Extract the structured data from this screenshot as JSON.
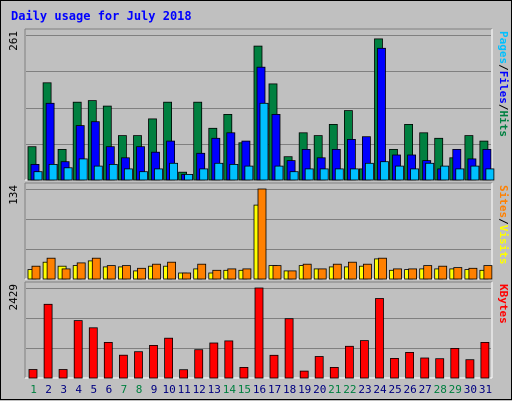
{
  "chart_data": {
    "type": "bar",
    "title": "Daily usage for July 2018",
    "categories": [
      "1",
      "2",
      "3",
      "4",
      "5",
      "6",
      "7",
      "8",
      "9",
      "10",
      "11",
      "12",
      "13",
      "14",
      "15",
      "16",
      "17",
      "18",
      "19",
      "20",
      "21",
      "22",
      "23",
      "24",
      "25",
      "26",
      "27",
      "28",
      "29",
      "30",
      "31"
    ],
    "weekend_days": [
      "1",
      "7",
      "8",
      "14",
      "15",
      "21",
      "22",
      "28",
      "29"
    ],
    "colors": {
      "hits": "#008040",
      "files": "#0000ff",
      "pages": "#00c0ff",
      "visits": "#ffff00",
      "sites": "#ff8000",
      "kbytes": "#ff0000",
      "title": "#0000ff",
      "weekend_label": "#008040",
      "weekday_label": "#000080"
    },
    "panels": [
      {
        "name": "hits-files-pages",
        "max_label": "261",
        "ymax": 261,
        "axis_parts": [
          {
            "text": "Pages",
            "color": "#00c0ff"
          },
          {
            "text": "/",
            "color": "#000000"
          },
          {
            "text": "Files",
            "color": "#0000ff"
          },
          {
            "text": "/",
            "color": "#000000"
          },
          {
            "text": "Hits",
            "color": "#008040"
          }
        ],
        "series": [
          {
            "name": "Hits",
            "color": "#008040",
            "values": [
              60,
              175,
              55,
              140,
              143,
              133,
              80,
              80,
              110,
              140,
              14,
              140,
              93,
              118,
              67,
              241,
              173,
              42,
              85,
              80,
              100,
              125,
              20,
              254,
              55,
              100,
              85,
              75,
              40,
              80,
              70
            ]
          },
          {
            "name": "Files",
            "color": "#0000ff",
            "values": [
              28,
              138,
              33,
              98,
              105,
              60,
              40,
              60,
              50,
              70,
              10,
              48,
              75,
              85,
              70,
              203,
              118,
              35,
              55,
              40,
              55,
              73,
              78,
              237,
              45,
              45,
              35,
              20,
              55,
              38,
              55
            ]
          },
          {
            "name": "Pages",
            "color": "#00c0ff",
            "values": [
              15,
              28,
              22,
              38,
              25,
              28,
              20,
              15,
              20,
              30,
              10,
              20,
              30,
              28,
              25,
              138,
              25,
              15,
              20,
              20,
              20,
              20,
              30,
              33,
              25,
              20,
              30,
              25,
              20,
              25,
              20
            ]
          }
        ]
      },
      {
        "name": "visits-sites",
        "max_label": "134",
        "ymax": 134,
        "axis_parts": [
          {
            "text": "Sites",
            "color": "#ff8000"
          },
          {
            "text": "/",
            "color": "#000000"
          },
          {
            "text": "Visits",
            "color": "#ffff00"
          }
        ],
        "series": [
          {
            "name": "Visits",
            "color": "#ffff00",
            "values": [
              14,
              25,
              19,
              20,
              27,
              18,
              18,
              12,
              19,
              19,
              9,
              15,
              9,
              13,
              13,
              110,
              20,
              12,
              20,
              15,
              18,
              18,
              19,
              30,
              13,
              14,
              15,
              15,
              15,
              14,
              13
            ]
          },
          {
            "name": "Sites",
            "color": "#ff8000",
            "values": [
              19,
              31,
              15,
              24,
              31,
              20,
              20,
              16,
              22,
              25,
              9,
              22,
              13,
              15,
              15,
              134,
              20,
              12,
              22,
              15,
              22,
              25,
              22,
              31,
              15,
              15,
              20,
              19,
              17,
              16,
              20
            ]
          }
        ]
      },
      {
        "name": "kbytes",
        "max_label": "2429",
        "ymax": 2429,
        "axis_parts": [
          {
            "text": "KBytes",
            "color": "#ff0000"
          }
        ],
        "series": [
          {
            "name": "KBytes",
            "color": "#ff0000",
            "values": [
              230,
              1990,
              230,
              1550,
              1355,
              960,
              615,
              710,
              880,
              1075,
              225,
              765,
              945,
              1000,
              285,
              2429,
              612,
              1600,
              185,
              580,
              285,
              856,
              1010,
              2146,
              530,
              690,
              540,
              520,
              800,
              495,
              960
            ]
          }
        ]
      }
    ]
  }
}
